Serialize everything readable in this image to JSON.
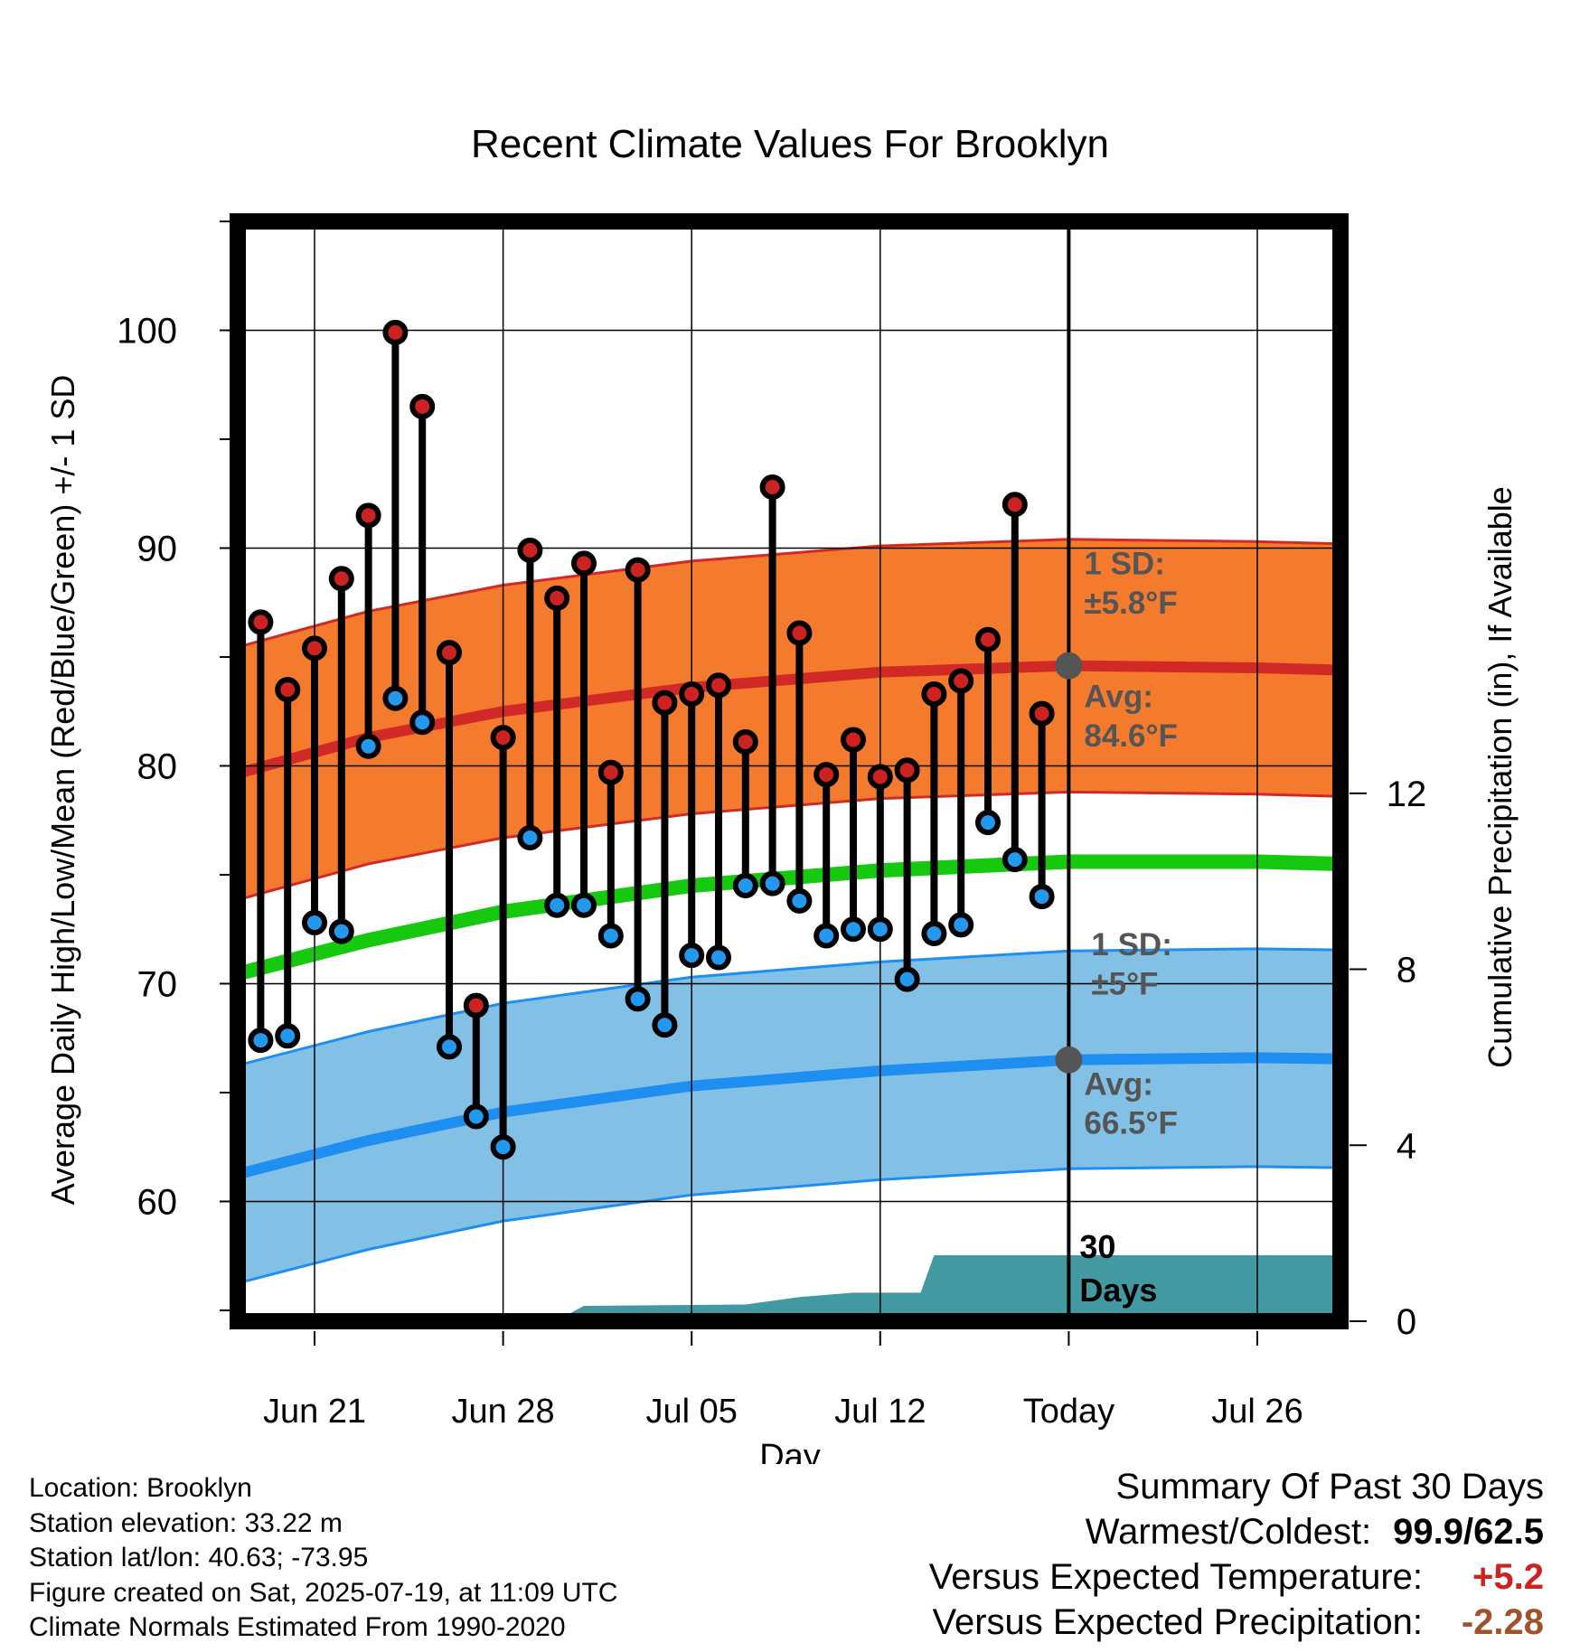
{
  "chart_data": {
    "type": "line",
    "title": "Recent Climate Values For Brooklyn",
    "xlabel": "Day",
    "ylabel": "Average Daily High/Low/Mean (Red/Blue/Green) +/- 1 SD",
    "y2label": "Cumulative Precipitation (in), If Available",
    "ylim": [
      54.5,
      105
    ],
    "y2lim": [
      0,
      25
    ],
    "xlim": [
      -3.5,
      55
    ],
    "x_ticks": [
      {
        "x": 0,
        "label": "Jun 21"
      },
      {
        "x": 7,
        "label": "Jun 28"
      },
      {
        "x": 14,
        "label": "Jul 05"
      },
      {
        "x": 21,
        "label": "Jul 12"
      },
      {
        "x": 28,
        "label": "Today"
      },
      {
        "x": 35,
        "label": "Jul 26"
      }
    ],
    "y_ticks": [
      60,
      70,
      80,
      90,
      100
    ],
    "y2_ticks": [
      0,
      4,
      8,
      12
    ],
    "grid": true,
    "today_x": 28,
    "days": [
      -2,
      -1,
      0,
      1,
      2,
      3,
      4,
      5,
      6,
      7,
      8,
      9,
      10,
      11,
      12,
      13,
      14,
      15,
      16,
      17,
      18,
      19,
      20,
      21,
      22,
      23,
      24,
      25,
      26,
      27
    ],
    "highs": [
      86.6,
      83.5,
      85.4,
      88.6,
      91.5,
      99.9,
      96.5,
      85.2,
      69.0,
      81.3,
      89.9,
      87.7,
      89.3,
      79.7,
      89.0,
      82.9,
      83.3,
      83.7,
      81.1,
      92.8,
      86.1,
      79.6,
      81.2,
      79.5,
      79.8,
      83.3,
      83.9,
      85.8,
      92.0,
      82.4
    ],
    "lows": [
      67.4,
      67.6,
      72.8,
      72.4,
      80.9,
      83.1,
      82.0,
      67.1,
      63.9,
      62.5,
      76.7,
      73.6,
      73.6,
      72.2,
      69.3,
      68.1,
      71.3,
      71.2,
      74.5,
      74.6,
      73.8,
      72.2,
      72.5,
      72.5,
      70.2,
      72.3,
      72.7,
      77.4,
      75.7,
      74.0
    ],
    "normal_high": {
      "x": [
        -3,
        2,
        7,
        14,
        21,
        28,
        35,
        41
      ],
      "avg": [
        79.6,
        81.3,
        82.5,
        83.6,
        84.3,
        84.6,
        84.5,
        84.3
      ],
      "sd": 5.8
    },
    "normal_low": {
      "x": [
        -3,
        2,
        7,
        14,
        21,
        28,
        35,
        41
      ],
      "avg": [
        61.2,
        62.8,
        64.1,
        65.3,
        66.0,
        66.5,
        66.6,
        66.5
      ],
      "sd": 5
    },
    "normal_mean": {
      "x": [
        -3,
        2,
        7,
        14,
        21,
        28,
        35,
        41
      ],
      "avg": [
        70.4,
        72.0,
        73.3,
        74.5,
        75.2,
        75.6,
        75.6,
        75.4
      ]
    },
    "precip_cumulative": {
      "x": [
        -3,
        6,
        9,
        10,
        16,
        18,
        20,
        21,
        22.5,
        23,
        41
      ],
      "y": [
        0,
        0,
        0.02,
        0.35,
        0.38,
        0.55,
        0.65,
        0.65,
        0.65,
        1.5,
        1.5
      ]
    },
    "annotations": {
      "high_sd_label": "1 SD:",
      "high_sd_value": "±5.8°F",
      "high_avg_label": "Avg:",
      "high_avg_value": "84.6°F",
      "low_sd_label": "1 SD:",
      "low_sd_value": "±5°F",
      "low_avg_label": "Avg:",
      "low_avg_value": "66.5°F",
      "window_line1": "30",
      "window_line2": "Days"
    },
    "colors": {
      "high_band": "#f47a2e",
      "high_line": "#d12a26",
      "low_band": "#82c0e6",
      "low_line": "#1e8ef0",
      "mean_line": "#16c80e",
      "precip": "#4399a2",
      "high_dot": "#cc2222",
      "low_dot": "#2299ee",
      "avg_dot": "#555555",
      "annotation_text": "#555555"
    }
  },
  "info": {
    "location": "Location: Brooklyn",
    "elevation": "Station elevation: 33.22 m",
    "latlon": "Station lat/lon: 40.63; -73.95",
    "created": "Figure created on Sat, 2025-07-19, at 11:09 UTC",
    "normals": "Climate Normals Estimated From 1990-2020"
  },
  "summary": {
    "title": "Summary Of Past 30 Days",
    "warm_cold_label": "Warmest/Coldest:",
    "warm_cold_value": "99.9/62.5",
    "temp_label": "Versus Expected Temperature:",
    "temp_value": "+5.2",
    "temp_color": "#cc2222",
    "precip_label": "Versus Expected Precipitation:",
    "precip_value": "-2.28",
    "precip_color": "#a0522d"
  }
}
